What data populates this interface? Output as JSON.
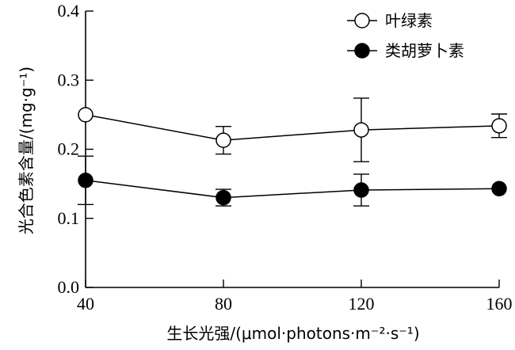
{
  "chart_data": {
    "type": "line",
    "x": [
      40,
      80,
      120,
      160
    ],
    "xlim": [
      40,
      160
    ],
    "ylim": [
      0.0,
      0.4
    ],
    "x_ticks": [
      "40",
      "80",
      "120",
      "160"
    ],
    "y_ticks": [
      "0.0",
      "0.1",
      "0.2",
      "0.3",
      "0.4"
    ],
    "xlabel": "生长光强/(μmol·photons·m⁻²·s⁻¹)",
    "ylabel": "光合色素含量/(mg·g⁻¹)",
    "legend_position": "top-right",
    "grid": false,
    "series": [
      {
        "name": "叶绿素",
        "marker": "open-circle",
        "values": [
          0.25,
          0.213,
          0.228,
          0.234
        ],
        "errors": [
          0.0,
          0.02,
          0.046,
          0.017
        ]
      },
      {
        "name": "类胡萝卜素",
        "marker": "filled-circle",
        "values": [
          0.155,
          0.13,
          0.141,
          0.143
        ],
        "errors": [
          0.035,
          0.012,
          0.023,
          0.0
        ]
      }
    ]
  }
}
